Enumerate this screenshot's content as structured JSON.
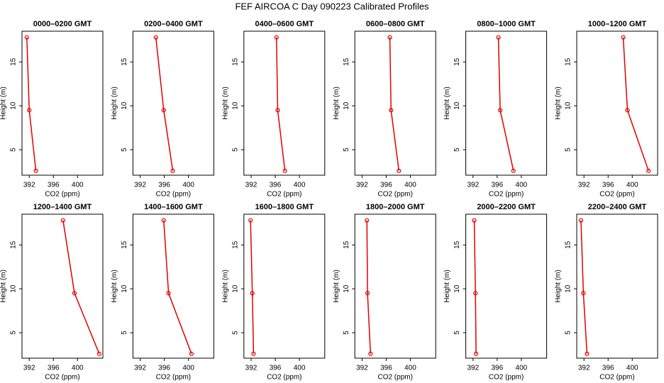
{
  "title": "FEF AIRCOA C  Day 090223  Calibrated Profiles",
  "chart_data": [
    {
      "type": "line",
      "title": "0000–0200 GMT",
      "xlabel": "CO2 (ppm)",
      "ylabel": "Height (m)",
      "color": "#e00000",
      "x": [
        391.6,
        392.0,
        393.1
      ],
      "values": [
        17.8,
        9.5,
        2.6
      ],
      "xlim": [
        390.8,
        404.2
      ],
      "ylim": [
        2.1,
        18.5
      ],
      "xticks": [
        392,
        396,
        400
      ],
      "yticks": [
        5,
        10,
        15
      ]
    },
    {
      "type": "line",
      "title": "0200–0400 GMT",
      "xlabel": "CO2 (ppm)",
      "ylabel": "Height (m)",
      "color": "#e00000",
      "x": [
        394.6,
        395.9,
        397.4
      ],
      "values": [
        17.8,
        9.5,
        2.6
      ],
      "xlim": [
        390.8,
        404.2
      ],
      "ylim": [
        2.1,
        18.5
      ],
      "xticks": [
        392,
        396,
        400
      ],
      "yticks": [
        5,
        10,
        15
      ]
    },
    {
      "type": "line",
      "title": "0400–0600 GMT",
      "xlabel": "CO2 (ppm)",
      "ylabel": "Height (m)",
      "color": "#e00000",
      "x": [
        396.2,
        396.4,
        397.6
      ],
      "values": [
        17.8,
        9.5,
        2.6
      ],
      "xlim": [
        390.8,
        404.2
      ],
      "ylim": [
        2.1,
        18.5
      ],
      "xticks": [
        392,
        396,
        400
      ],
      "yticks": [
        5,
        10,
        15
      ]
    },
    {
      "type": "line",
      "title": "0600–0800 GMT",
      "xlabel": "CO2 (ppm)",
      "ylabel": "Height (m)",
      "color": "#e00000",
      "x": [
        396.6,
        396.8,
        398.1
      ],
      "values": [
        17.8,
        9.5,
        2.6
      ],
      "xlim": [
        390.8,
        404.2
      ],
      "ylim": [
        2.1,
        18.5
      ],
      "xticks": [
        392,
        396,
        400
      ],
      "yticks": [
        5,
        10,
        15
      ]
    },
    {
      "type": "line",
      "title": "0800–1000 GMT",
      "xlabel": "CO2 (ppm)",
      "ylabel": "Height (m)",
      "color": "#e00000",
      "x": [
        396.2,
        396.5,
        398.7
      ],
      "values": [
        17.8,
        9.5,
        2.6
      ],
      "xlim": [
        390.8,
        404.2
      ],
      "ylim": [
        2.1,
        18.5
      ],
      "xticks": [
        392,
        396,
        400
      ],
      "yticks": [
        5,
        10,
        15
      ]
    },
    {
      "type": "line",
      "title": "1000–1200 GMT",
      "xlabel": "CO2 (ppm)",
      "ylabel": "Height (m)",
      "color": "#e00000",
      "x": [
        398.5,
        399.2,
        402.7
      ],
      "values": [
        17.8,
        9.5,
        2.6
      ],
      "xlim": [
        390.8,
        404.2
      ],
      "ylim": [
        2.1,
        18.5
      ],
      "xticks": [
        392,
        396,
        400
      ],
      "yticks": [
        5,
        10,
        15
      ]
    },
    {
      "type": "line",
      "title": "1200–1400 GMT",
      "xlabel": "CO2 (ppm)",
      "ylabel": "Height (m)",
      "color": "#e00000",
      "x": [
        397.6,
        399.5,
        403.6
      ],
      "values": [
        17.8,
        9.5,
        2.6
      ],
      "xlim": [
        390.8,
        404.2
      ],
      "ylim": [
        2.1,
        18.5
      ],
      "xticks": [
        392,
        396,
        400
      ],
      "yticks": [
        5,
        10,
        15
      ]
    },
    {
      "type": "line",
      "title": "1400–1600 GMT",
      "xlabel": "CO2 (ppm)",
      "ylabel": "Height (m)",
      "color": "#e00000",
      "x": [
        395.9,
        396.7,
        400.5
      ],
      "values": [
        17.8,
        9.5,
        2.6
      ],
      "xlim": [
        390.8,
        404.2
      ],
      "ylim": [
        2.1,
        18.5
      ],
      "xticks": [
        392,
        396,
        400
      ],
      "yticks": [
        5,
        10,
        15
      ]
    },
    {
      "type": "line",
      "title": "1600–1800 GMT",
      "xlabel": "CO2 (ppm)",
      "ylabel": "Height (m)",
      "color": "#e00000",
      "x": [
        391.9,
        392.2,
        392.4
      ],
      "values": [
        17.8,
        9.5,
        2.6
      ],
      "xlim": [
        390.8,
        404.2
      ],
      "ylim": [
        2.1,
        18.5
      ],
      "xticks": [
        392,
        396,
        400
      ],
      "yticks": [
        5,
        10,
        15
      ]
    },
    {
      "type": "line",
      "title": "1800–2000 GMT",
      "xlabel": "CO2 (ppm)",
      "ylabel": "Height (m)",
      "color": "#e00000",
      "x": [
        392.8,
        392.9,
        393.4
      ],
      "values": [
        17.8,
        9.5,
        2.6
      ],
      "xlim": [
        390.8,
        404.2
      ],
      "ylim": [
        2.1,
        18.5
      ],
      "xticks": [
        392,
        396,
        400
      ],
      "yticks": [
        5,
        10,
        15
      ]
    },
    {
      "type": "line",
      "title": "2000–2200 GMT",
      "xlabel": "CO2 (ppm)",
      "ylabel": "Height (m)",
      "color": "#e00000",
      "x": [
        392.2,
        392.4,
        392.5
      ],
      "values": [
        17.8,
        9.5,
        2.6
      ],
      "xlim": [
        390.8,
        404.2
      ],
      "ylim": [
        2.1,
        18.5
      ],
      "xticks": [
        392,
        396,
        400
      ],
      "yticks": [
        5,
        10,
        15
      ]
    },
    {
      "type": "line",
      "title": "2200–2400 GMT",
      "xlabel": "CO2 (ppm)",
      "ylabel": "Height (m)",
      "color": "#e00000",
      "x": [
        391.5,
        391.9,
        392.5
      ],
      "values": [
        17.8,
        9.5,
        2.6
      ],
      "xlim": [
        390.8,
        404.2
      ],
      "ylim": [
        2.1,
        18.5
      ],
      "xticks": [
        392,
        396,
        400
      ],
      "yticks": [
        5,
        10,
        15
      ]
    }
  ]
}
